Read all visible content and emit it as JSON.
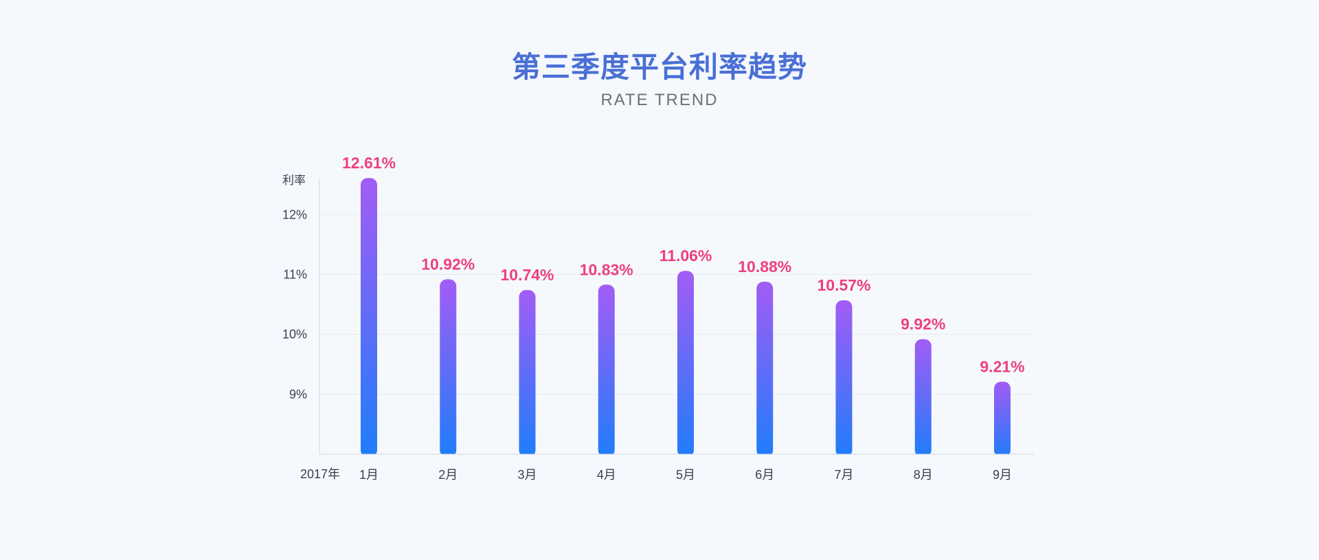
{
  "chart_data": {
    "type": "bar",
    "title": "第三季度平台利率趋势",
    "subtitle": "RATE TREND",
    "ylabel": "利率",
    "xlabel": "2017年",
    "categories": [
      "1月",
      "2月",
      "3月",
      "4月",
      "5月",
      "6月",
      "7月",
      "8月",
      "9月"
    ],
    "values": [
      12.61,
      10.92,
      10.74,
      10.83,
      11.06,
      10.88,
      10.57,
      9.92,
      9.21
    ],
    "value_labels": [
      "12.61%",
      "10.92%",
      "10.74%",
      "10.83%",
      "11.06%",
      "10.88%",
      "10.57%",
      "9.92%",
      "9.21%"
    ],
    "yticks": [
      9,
      10,
      11,
      12
    ],
    "ytick_labels": [
      "9%",
      "10%",
      "11%",
      "12%"
    ],
    "ylim": [
      8,
      12.6
    ],
    "grid": true,
    "colors": {
      "title": "#4a6fd6",
      "bar_top": "#a35cf5",
      "bar_bottom": "#1f7dfa",
      "data_label": "#ee3f7e",
      "grid": "#e4eaf1",
      "axis": "#cdd6e0"
    }
  }
}
